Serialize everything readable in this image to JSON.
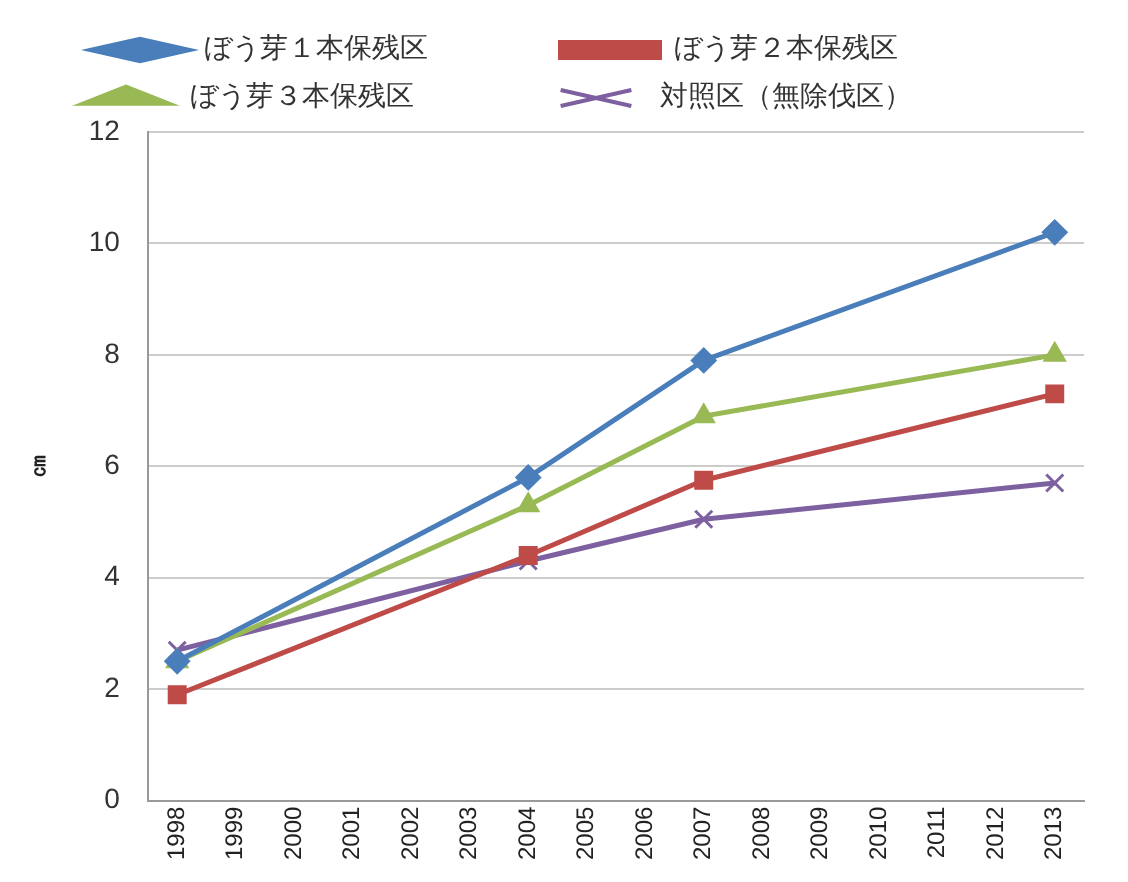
{
  "chart_data": {
    "type": "line",
    "ylabel": "㎝",
    "x": [
      1998,
      2004,
      2007,
      2013
    ],
    "xlim": [
      1997.5,
      2013.5
    ],
    "xticks": [
      1998,
      1999,
      2000,
      2001,
      2002,
      2003,
      2004,
      2005,
      2006,
      2007,
      2008,
      2009,
      2010,
      2011,
      2012,
      2013
    ],
    "ylim": [
      0,
      12
    ],
    "yticks": [
      0,
      2,
      4,
      6,
      8,
      10,
      12
    ],
    "grid": "y",
    "legend": "top",
    "series": [
      {
        "name": "ぼう芽１本保残区",
        "color": "#4a7ebb",
        "marker": "diamond",
        "values": [
          2.5,
          5.8,
          7.9,
          10.2
        ]
      },
      {
        "name": "ぼう芽２本保残区",
        "color": "#be4b48",
        "marker": "square",
        "values": [
          1.9,
          4.4,
          5.75,
          7.3
        ]
      },
      {
        "name": "ぼう芽３本保残区",
        "color": "#98b954",
        "marker": "triangle",
        "values": [
          2.5,
          5.3,
          6.9,
          8.0
        ]
      },
      {
        "name": "対照区（無除伐区）",
        "color": "#7d60a0",
        "marker": "cross",
        "values": [
          2.7,
          4.3,
          5.05,
          5.7
        ]
      }
    ]
  }
}
